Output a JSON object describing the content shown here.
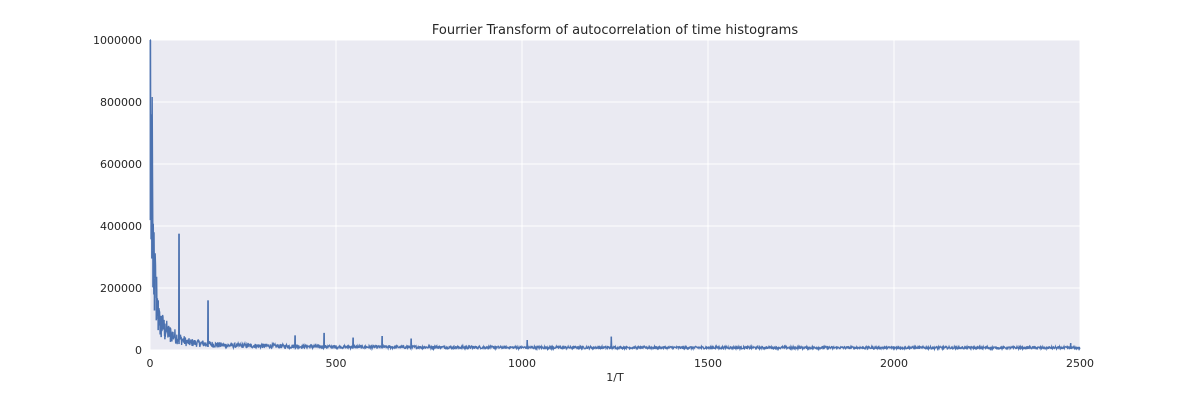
{
  "chart_data": {
    "type": "line",
    "title": "Fourrier Transform of autocorrelation of time histograms",
    "xlabel": "1/T",
    "ylabel": "",
    "xlim": [
      0,
      2500
    ],
    "ylim": [
      0,
      1000000
    ],
    "xticks": [
      0,
      500,
      1000,
      1500,
      2000,
      2500
    ],
    "yticks": [
      0,
      200000,
      400000,
      600000,
      800000,
      1000000
    ],
    "xtick_labels": [
      "0",
      "500",
      "1000",
      "1500",
      "2000",
      "2500"
    ],
    "ytick_labels": [
      "0",
      "200000",
      "400000",
      "600000",
      "800000",
      "1000000"
    ],
    "grid": true,
    "colors": {
      "line": "#4c72b0",
      "background": "#eaeaf2",
      "grid": "#ffffff"
    },
    "series": [
      {
        "peaks": [
          {
            "x": 1,
            "y": 1000000
          },
          {
            "x": 3,
            "y": 760000
          },
          {
            "x": 5,
            "y": 420000
          },
          {
            "x": 8,
            "y": 320000
          },
          {
            "x": 12,
            "y": 230000
          },
          {
            "x": 17,
            "y": 200000
          },
          {
            "x": 22,
            "y": 160000
          },
          {
            "x": 30,
            "y": 110000
          },
          {
            "x": 40,
            "y": 85000
          },
          {
            "x": 55,
            "y": 70000
          },
          {
            "x": 78,
            "y": 375000
          },
          {
            "x": 156,
            "y": 160000
          },
          {
            "x": 390,
            "y": 47000
          },
          {
            "x": 468,
            "y": 55000
          },
          {
            "x": 546,
            "y": 40000
          },
          {
            "x": 624,
            "y": 45000
          },
          {
            "x": 702,
            "y": 37000
          },
          {
            "x": 1014,
            "y": 32000
          },
          {
            "x": 1240,
            "y": 43000
          },
          {
            "x": 2475,
            "y": 22000
          }
        ],
        "baseline_approx": [
          {
            "x": 0,
            "y": 900000
          },
          {
            "x": 10,
            "y": 280000
          },
          {
            "x": 25,
            "y": 90000
          },
          {
            "x": 50,
            "y": 55000
          },
          {
            "x": 100,
            "y": 25000
          },
          {
            "x": 200,
            "y": 15000
          },
          {
            "x": 500,
            "y": 10000
          },
          {
            "x": 1000,
            "y": 8000
          },
          {
            "x": 2500,
            "y": 7000
          }
        ]
      }
    ]
  }
}
